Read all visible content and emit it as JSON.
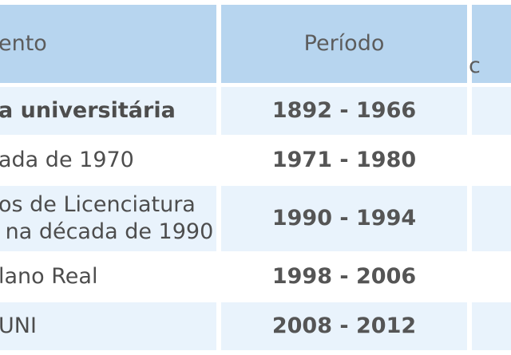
{
  "table": {
    "header": {
      "event": "ento",
      "period": "Período",
      "extra": "c"
    },
    "rows": [
      {
        "event": "a universitária",
        "period": "1892 - 1966"
      },
      {
        "event": "ada de 1970",
        "period": "1971 - 1980"
      },
      {
        "event_line1": "os de Licenciatura",
        "event_line2": " na década de 1990",
        "period": "1990 - 1994"
      },
      {
        "event": "lano Real",
        "period": "1998 - 2006"
      },
      {
        "event": "UNI",
        "period": "2008 - 2012"
      }
    ]
  }
}
